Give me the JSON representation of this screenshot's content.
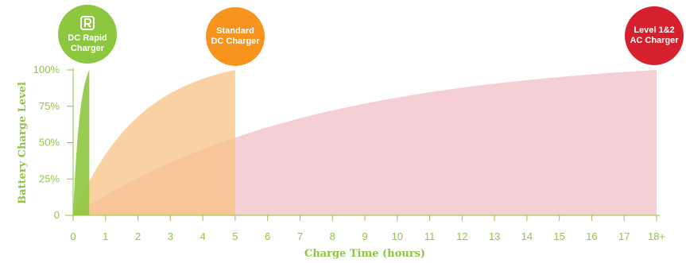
{
  "chart_data": {
    "type": "area",
    "xlabel": "Charge Time (hours)",
    "ylabel": "Battery Charge Level",
    "xlim": [
      0,
      18
    ],
    "ylim": [
      0,
      100
    ],
    "x_ticks": [
      "0",
      "1",
      "2",
      "3",
      "4",
      "5",
      "6",
      "7",
      "8",
      "9",
      "10",
      "11",
      "12",
      "13",
      "14",
      "15",
      "16",
      "17",
      "18+"
    ],
    "y_ticks": [
      {
        "value": 0,
        "label": "0"
      },
      {
        "value": 25,
        "label": "25%"
      },
      {
        "value": 50,
        "label": "50%"
      },
      {
        "value": 75,
        "label": "75%"
      },
      {
        "value": 100,
        "label": "100%"
      }
    ],
    "series": [
      {
        "name": "Level 1&2 AC Charger",
        "label_lines": [
          "Level 1&2",
          "AC Charger"
        ],
        "color": "#d6202e",
        "fill": "#eeb5bf",
        "full_charge_hours": 18
      },
      {
        "name": "Standard DC Charger",
        "label_lines": [
          "Standard",
          "DC Charger"
        ],
        "color": "#f7941d",
        "fill": "#f8c283",
        "full_charge_hours": 5
      },
      {
        "name": "DC Rapid Charger",
        "label_lines": [
          "DC Rapid",
          "Charger"
        ],
        "color": "#8dc63f",
        "fill": "#8dc63f",
        "full_charge_hours": 0.5
      }
    ]
  }
}
